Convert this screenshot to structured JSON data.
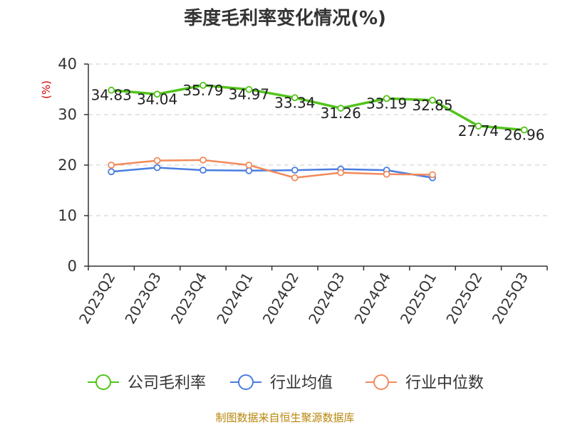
{
  "chart_data": {
    "type": "line",
    "title": "季度毛利率变化情况(%)",
    "ylabel": "(%)",
    "xlabel": "",
    "categories": [
      "2023Q2",
      "2023Q3",
      "2023Q4",
      "2024Q1",
      "2024Q2",
      "2024Q3",
      "2024Q4",
      "2025Q1",
      "2025Q2",
      "2025Q3"
    ],
    "ylim": [
      0,
      40
    ],
    "yticks": [
      0,
      10,
      20,
      30,
      40
    ],
    "grid": true,
    "legend_position": "bottom",
    "series": [
      {
        "name": "公司毛利率",
        "color": "#52c41a",
        "values": [
          34.83,
          34.04,
          35.79,
          34.97,
          33.34,
          31.26,
          33.19,
          32.85,
          27.74,
          26.96
        ],
        "labels": [
          "34.83",
          "34.04",
          "35.79",
          "34.97",
          "33.34",
          "31.26",
          "33.19",
          "32.85",
          "27.74",
          "26.96"
        ]
      },
      {
        "name": "行业均值",
        "color": "#4a7de0",
        "values": [
          18.7,
          19.5,
          19.0,
          18.9,
          19.0,
          19.2,
          19.0,
          17.5,
          null,
          null
        ],
        "labels": []
      },
      {
        "name": "行业中位数",
        "color": "#f28a5c",
        "values": [
          20.0,
          20.9,
          21.0,
          20.0,
          17.5,
          18.5,
          18.2,
          18.1,
          null,
          null
        ],
        "labels": []
      }
    ],
    "source": "制图数据来自恒生聚源数据库"
  }
}
